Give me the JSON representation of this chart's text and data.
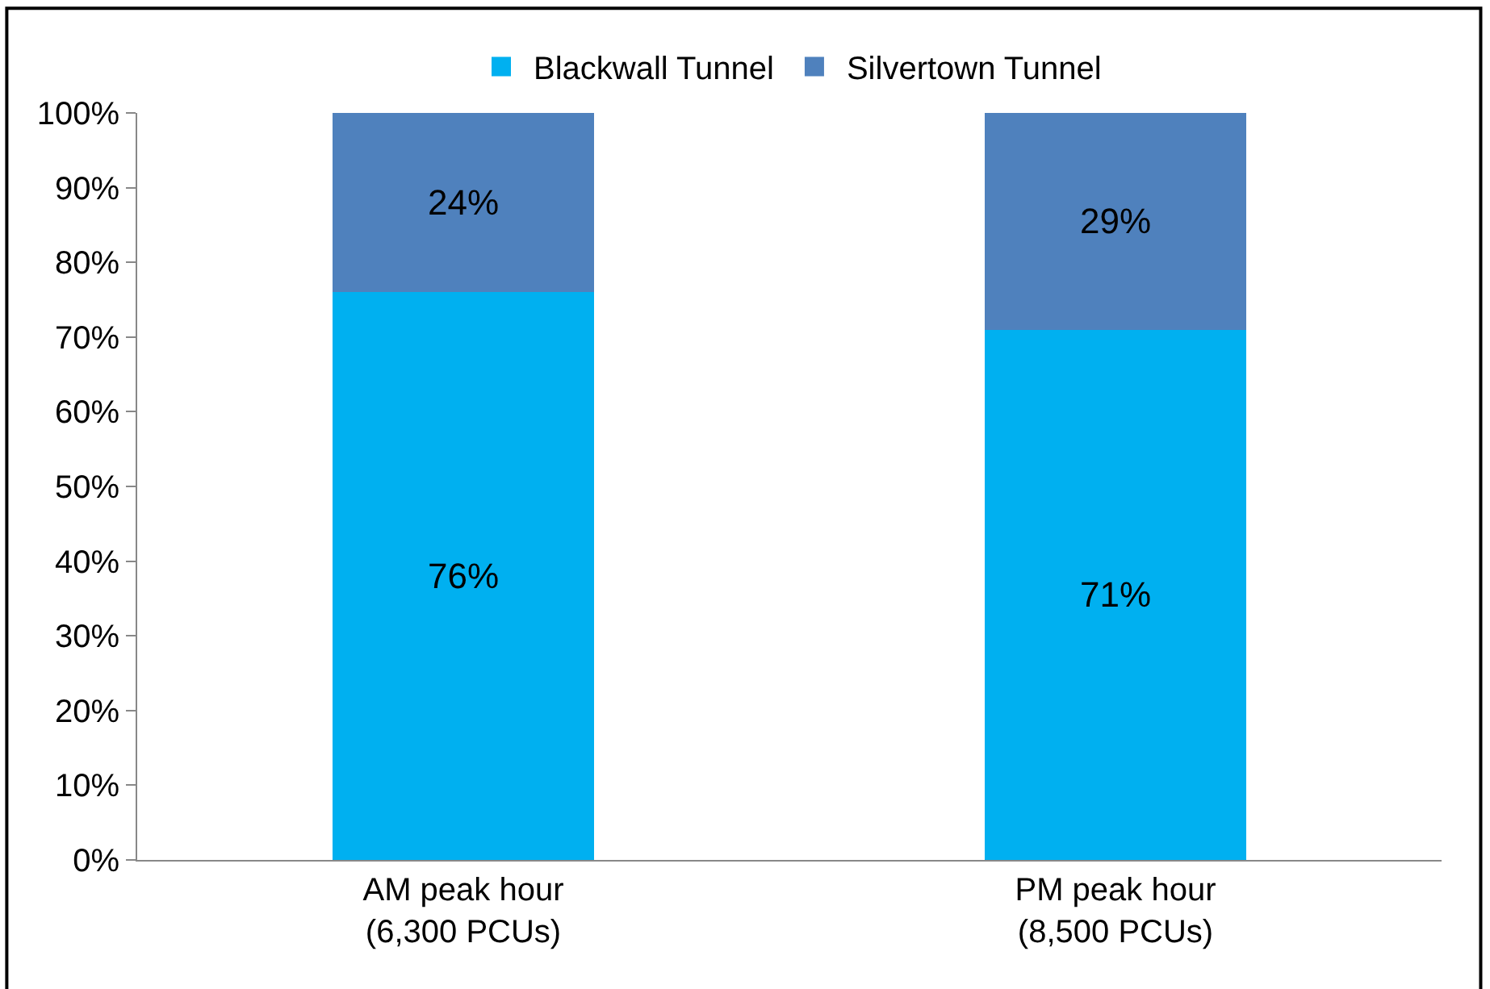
{
  "chart_data": {
    "type": "bar",
    "stacked": true,
    "categories": [
      "AM peak hour\n(6,300 PCUs)",
      "PM peak hour\n(8,500 PCUs)"
    ],
    "series": [
      {
        "name": "Blackwall Tunnel",
        "color": "#00b0f0",
        "values": [
          76,
          71
        ],
        "value_labels": [
          "76%",
          "71%"
        ]
      },
      {
        "name": "Silvertown Tunnel",
        "color": "#4f81bd",
        "values": [
          24,
          29
        ],
        "value_labels": [
          "24%",
          "29%"
        ]
      }
    ],
    "ylim": [
      0,
      100
    ],
    "yticks": [
      {
        "value": 0,
        "label": "0%"
      },
      {
        "value": 10,
        "label": "10%"
      },
      {
        "value": 20,
        "label": "20%"
      },
      {
        "value": 30,
        "label": "30%"
      },
      {
        "value": 40,
        "label": "40%"
      },
      {
        "value": 50,
        "label": "50%"
      },
      {
        "value": 60,
        "label": "60%"
      },
      {
        "value": 70,
        "label": "70%"
      },
      {
        "value": 80,
        "label": "80%"
      },
      {
        "value": 90,
        "label": "90%"
      },
      {
        "value": 100,
        "label": "100%"
      }
    ],
    "legend": "top"
  }
}
